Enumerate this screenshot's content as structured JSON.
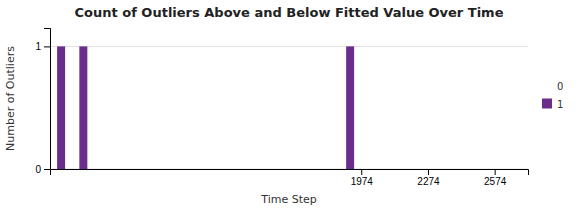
{
  "chart_data": {
    "type": "bar",
    "title": "Count of Outliers Above and Below Fitted Value Over Time",
    "x_label": "Time Step",
    "y_label": "Number of Outliers",
    "x": [
      624,
      724,
      1924
    ],
    "series": [
      {
        "name": "0",
        "color": "none",
        "values": [
          null,
          null,
          null
        ]
      },
      {
        "name": "1",
        "color": "#6B2D8B",
        "values": [
          1,
          1,
          1
        ]
      }
    ],
    "xlim": [
      574,
      2724
    ],
    "xticks": [
      1974,
      2274,
      2574
    ],
    "ylim": [
      0,
      1.15
    ],
    "yticks": [
      0,
      1
    ],
    "grid": true,
    "legend": "right"
  }
}
